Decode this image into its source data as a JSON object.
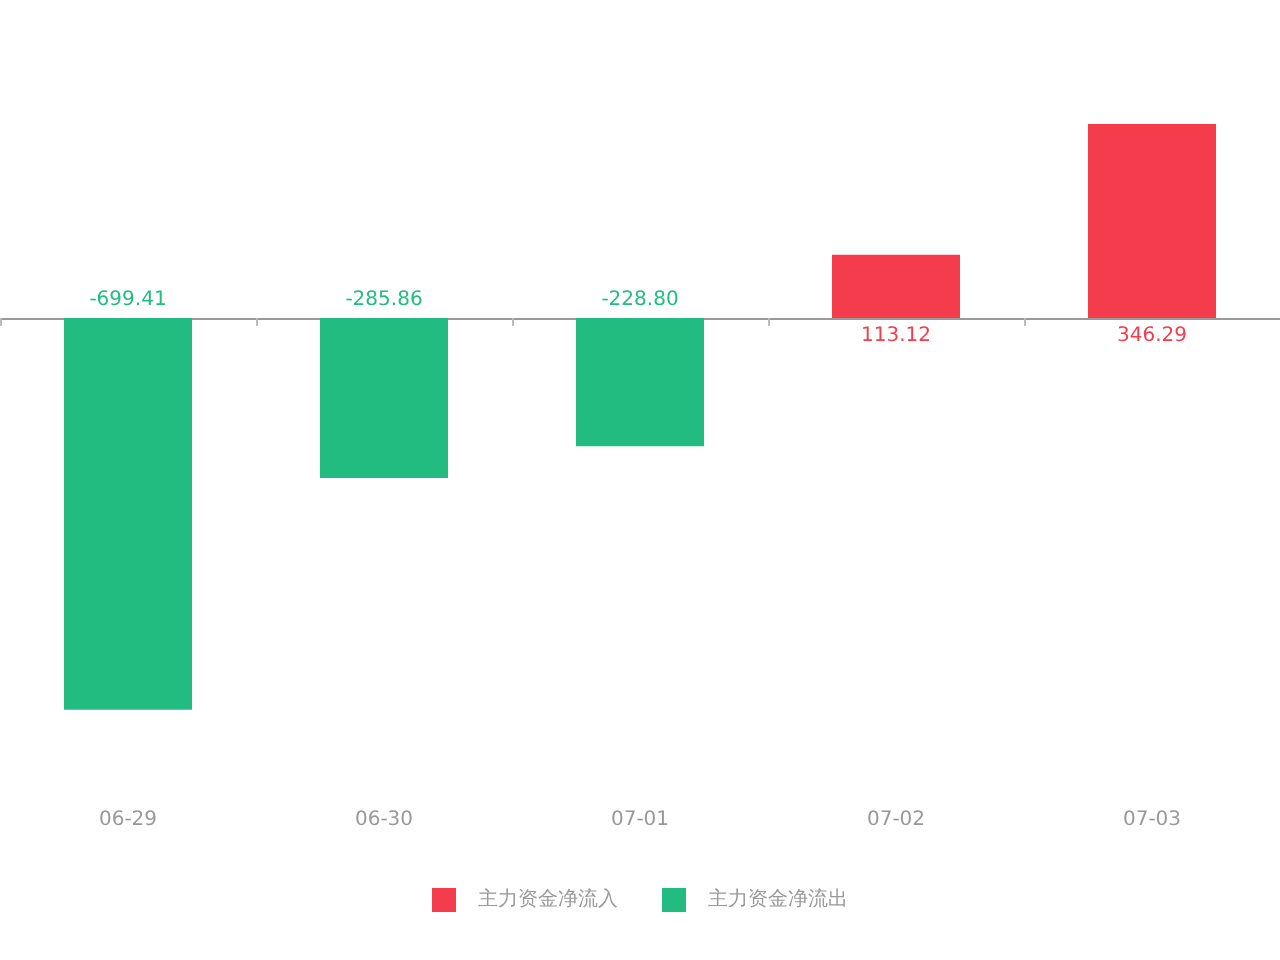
{
  "chart_data": {
    "type": "bar",
    "categories": [
      "06-29",
      "06-30",
      "07-01",
      "07-02",
      "07-03"
    ],
    "series": [
      {
        "name": "主力资金净流入",
        "color": "#f53c4c",
        "values": [
          null,
          null,
          null,
          113.12,
          346.29
        ],
        "value_labels": [
          null,
          null,
          null,
          "113.12",
          "346.29"
        ]
      },
      {
        "name": "主力资金净流出",
        "color": "#22bc80",
        "values": [
          -699.41,
          -285.86,
          -228.8,
          null,
          null
        ],
        "value_labels": [
          "-699.41",
          "-285.86",
          "-228.80",
          null,
          null
        ]
      }
    ],
    "legend": "bottom"
  }
}
